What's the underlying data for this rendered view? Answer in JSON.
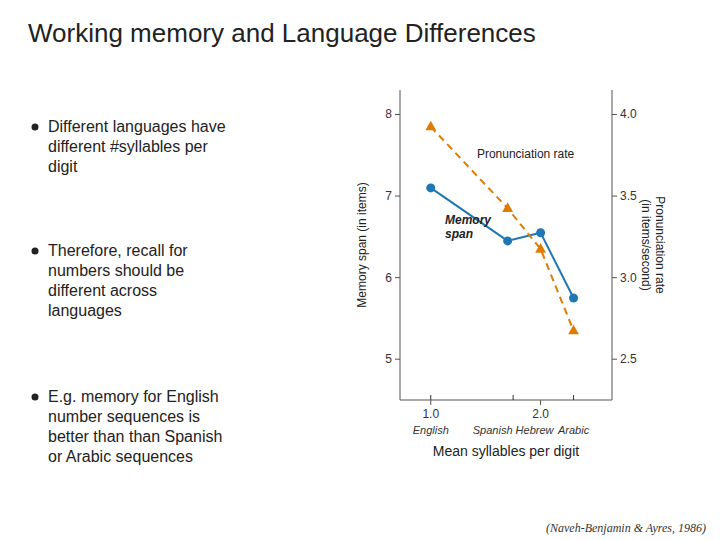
{
  "chart_data": {
    "type": "line",
    "title": "Working memory and Language Differences",
    "bullets": [
      "Different languages have\ndifferent #syllables per\ndigit",
      "Therefore, recall for\nnumbers should be\ndifferent across\nlanguages",
      "E.g. memory for English\nnumber sequences is\nbetter than than Spanish\nor Arabic sequences"
    ],
    "citation": "(Naveh-Benjamin & Ayres, 1986)",
    "x_label": "Mean syllables per digit",
    "y_label": "Memory span (in items)",
    "y2_label": "Pronunciation rate\n(in items/second)",
    "x": [
      1.0,
      1.7,
      2.0,
      2.3
    ],
    "series": [
      {
        "values": [
          7.1,
          6.45,
          6.55,
          5.75
        ],
        "marker": "circle",
        "line_style": "solid"
      },
      {
        "values": [
          7.85,
          6.85,
          6.35,
          5.35
        ],
        "marker": "triangle",
        "line_style": "dashed"
      }
    ],
    "xlim": [
      0.72,
      2.65
    ],
    "ylim": [
      4.5,
      8.3
    ],
    "y2lim": [
      2.25,
      4.15
    ],
    "xticks": [
      {
        "value": 1.0,
        "label": "1.0"
      },
      {
        "value": 2.0,
        "label": "2.0"
      }
    ],
    "yticks": [
      5,
      6,
      7,
      8
    ],
    "y2ticks": [
      2.5,
      {
        "value": 3.0,
        "label": "3.0"
      },
      3.5,
      {
        "value": 4.0,
        "label": "4.0"
      }
    ],
    "x_markers": [
      {
        "label": "English",
        "x": 1.0
      },
      {
        "label": "Spanish Hebrew",
        "x": 1.75
      },
      {
        "label": "Arabic",
        "x": 2.3
      }
    ],
    "annotations": [
      {
        "text": "Memory\nspan",
        "x": 1.13,
        "y": 6.62
      },
      {
        "text": "Pronunciation rate",
        "x": 1.42,
        "y": 7.52
      }
    ],
    "grid": false
  }
}
